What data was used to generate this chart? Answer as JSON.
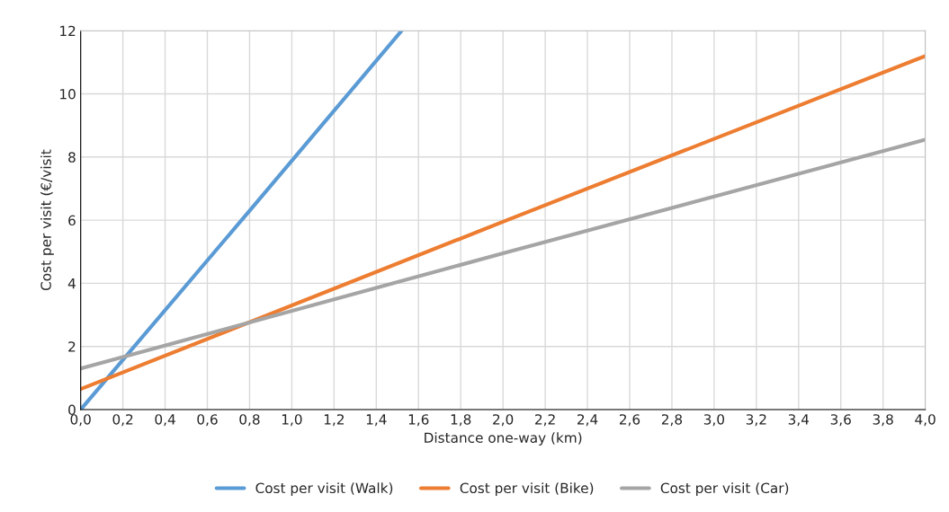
{
  "chart_data": {
    "type": "line",
    "xlabel": "Distance one-way (km)",
    "ylabel": "Cost per visit (€/visit",
    "xlim": [
      0,
      4
    ],
    "ylim": [
      0,
      12
    ],
    "xticks": [
      {
        "value": 0,
        "label": "0,0"
      },
      {
        "value": 0.2,
        "label": "0,2"
      },
      {
        "value": 0.4,
        "label": "0,4"
      },
      {
        "value": 0.6,
        "label": "0,6"
      },
      {
        "value": 0.8,
        "label": "0,8"
      },
      {
        "value": 1.0,
        "label": "1,0"
      },
      {
        "value": 1.2,
        "label": "1,2"
      },
      {
        "value": 1.4,
        "label": "1,4"
      },
      {
        "value": 1.6,
        "label": "1,6"
      },
      {
        "value": 1.8,
        "label": "1,8"
      },
      {
        "value": 2.0,
        "label": "2,0"
      },
      {
        "value": 2.2,
        "label": "2,2"
      },
      {
        "value": 2.4,
        "label": "2,4"
      },
      {
        "value": 2.6,
        "label": "2,6"
      },
      {
        "value": 2.8,
        "label": "2,8"
      },
      {
        "value": 3.0,
        "label": "3,0"
      },
      {
        "value": 3.2,
        "label": "3,2"
      },
      {
        "value": 3.4,
        "label": "3,4"
      },
      {
        "value": 3.6,
        "label": "3,6"
      },
      {
        "value": 3.8,
        "label": "3,8"
      },
      {
        "value": 4.0,
        "label": "4,0"
      }
    ],
    "yticks": [
      0,
      2,
      4,
      6,
      8,
      10,
      12
    ],
    "grid": true,
    "legend": "bottom",
    "marker": "none",
    "line_style": "solid",
    "series": [
      {
        "name": "Cost per visit (Walk)",
        "color": "#5b9bd5",
        "x": [
          0,
          0.8,
          1.52
        ],
        "values": [
          0,
          6.3,
          12
        ]
      },
      {
        "name": "Cost per visit (Bike)",
        "color": "#ed7d31",
        "x": [
          0,
          2.0,
          4.0
        ],
        "values": [
          0.65,
          5.95,
          11.2
        ]
      },
      {
        "name": "Cost per visit (Car)",
        "color": "#a5a5a5",
        "x": [
          0,
          2.0,
          4.0
        ],
        "values": [
          1.3,
          4.95,
          8.55
        ]
      }
    ]
  }
}
